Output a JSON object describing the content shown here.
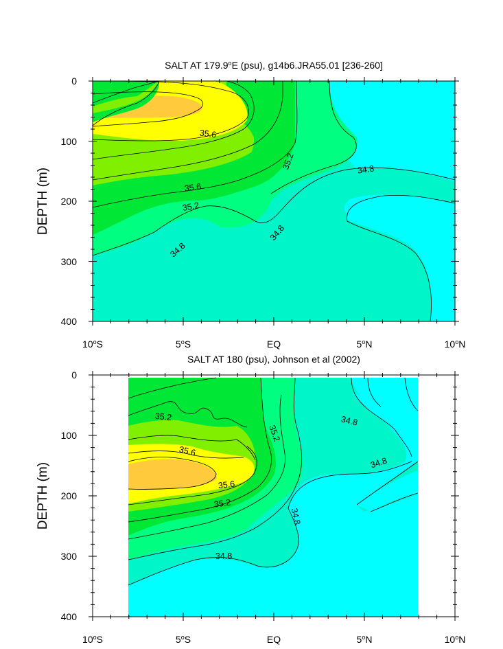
{
  "chart_data": [
    {
      "type": "contour",
      "title": "SALT AT 179.9°E (psu), g14b6.JRA55.01 [236-260]",
      "title_main": "SALT AT 179.9",
      "title_super": "o",
      "title_rest": "E (psu), g14b6.JRA55.01 [236-260]",
      "ylabel": "DEPTH (m)",
      "xlabel": "",
      "xlim": [
        -10,
        10
      ],
      "ylim": [
        0,
        400
      ],
      "y_inverted": true,
      "x_ticks": [
        {
          "value": -10,
          "num": "10",
          "sup": "o",
          "hemi": "S"
        },
        {
          "value": -5,
          "num": "5",
          "sup": "o",
          "hemi": "S"
        },
        {
          "value": 0,
          "num": "EQ",
          "sup": "",
          "hemi": ""
        },
        {
          "value": 5,
          "num": "5",
          "sup": "o",
          "hemi": "N"
        },
        {
          "value": 10,
          "num": "10",
          "sup": "o",
          "hemi": "N"
        }
      ],
      "y_ticks": [
        "0",
        "100",
        "200",
        "300",
        "400"
      ],
      "contour_interval": 0.2,
      "fill_levels": [
        {
          "max": 34.8,
          "color": "#00ffff"
        },
        {
          "range": [
            34.8,
            35.0
          ],
          "color": "#00f5c8"
        },
        {
          "range": [
            35.0,
            35.2
          ],
          "color": "#00ff80"
        },
        {
          "range": [
            35.2,
            35.4
          ],
          "color": "#00e835"
        },
        {
          "range": [
            35.4,
            35.6
          ],
          "color": "#80f000"
        },
        {
          "range": [
            35.6,
            35.8
          ],
          "color": "#ffff00"
        },
        {
          "min": 35.8,
          "color": "#ffcb3c"
        }
      ],
      "contour_labels": [
        {
          "text": "35.6",
          "x": -5.0,
          "depth": 88
        },
        {
          "text": "35.2",
          "x": 0.7,
          "depth": 132
        },
        {
          "text": "34.8",
          "x": 5.0,
          "depth": 145
        },
        {
          "text": "35.6",
          "x": -4.6,
          "depth": 172
        },
        {
          "text": "35.2",
          "x": -4.7,
          "depth": 206
        },
        {
          "text": "34.8",
          "x": 0.2,
          "depth": 252
        },
        {
          "text": "34.8",
          "x": -5.1,
          "depth": 277
        }
      ]
    },
    {
      "type": "contour",
      "title": "SALT AT 180 (psu), Johnson et al (2002)",
      "ylabel": "DEPTH (m)",
      "xlabel": "",
      "xlim": [
        -10,
        10
      ],
      "ylim": [
        0,
        400
      ],
      "y_inverted": true,
      "data_x_range": [
        -8,
        8
      ],
      "x_ticks": [
        {
          "value": -10,
          "num": "10",
          "sup": "o",
          "hemi": "S"
        },
        {
          "value": -5,
          "num": "5",
          "sup": "o",
          "hemi": "S"
        },
        {
          "value": 0,
          "num": "EQ",
          "sup": "",
          "hemi": ""
        },
        {
          "value": 5,
          "num": "5",
          "sup": "o",
          "hemi": "N"
        },
        {
          "value": 10,
          "num": "10",
          "sup": "o",
          "hemi": "N"
        }
      ],
      "y_ticks": [
        "0",
        "100",
        "200",
        "300",
        "400"
      ],
      "contour_interval": 0.2,
      "contour_labels": [
        {
          "text": "35.2",
          "x": -6.1,
          "depth": 66
        },
        {
          "text": "35.2",
          "x": -0.0,
          "depth": 97
        },
        {
          "text": "34.8",
          "x": 4.1,
          "depth": 75
        },
        {
          "text": "35.6",
          "x": -4.7,
          "depth": 126
        },
        {
          "text": "34.8",
          "x": 4.8,
          "depth": 146
        },
        {
          "text": "35.6",
          "x": -2.6,
          "depth": 180
        },
        {
          "text": "35.2",
          "x": -2.7,
          "depth": 209
        },
        {
          "text": "34.8",
          "x": 1.2,
          "depth": 252
        },
        {
          "text": "34.8",
          "x": -2.8,
          "depth": 297
        }
      ]
    }
  ]
}
